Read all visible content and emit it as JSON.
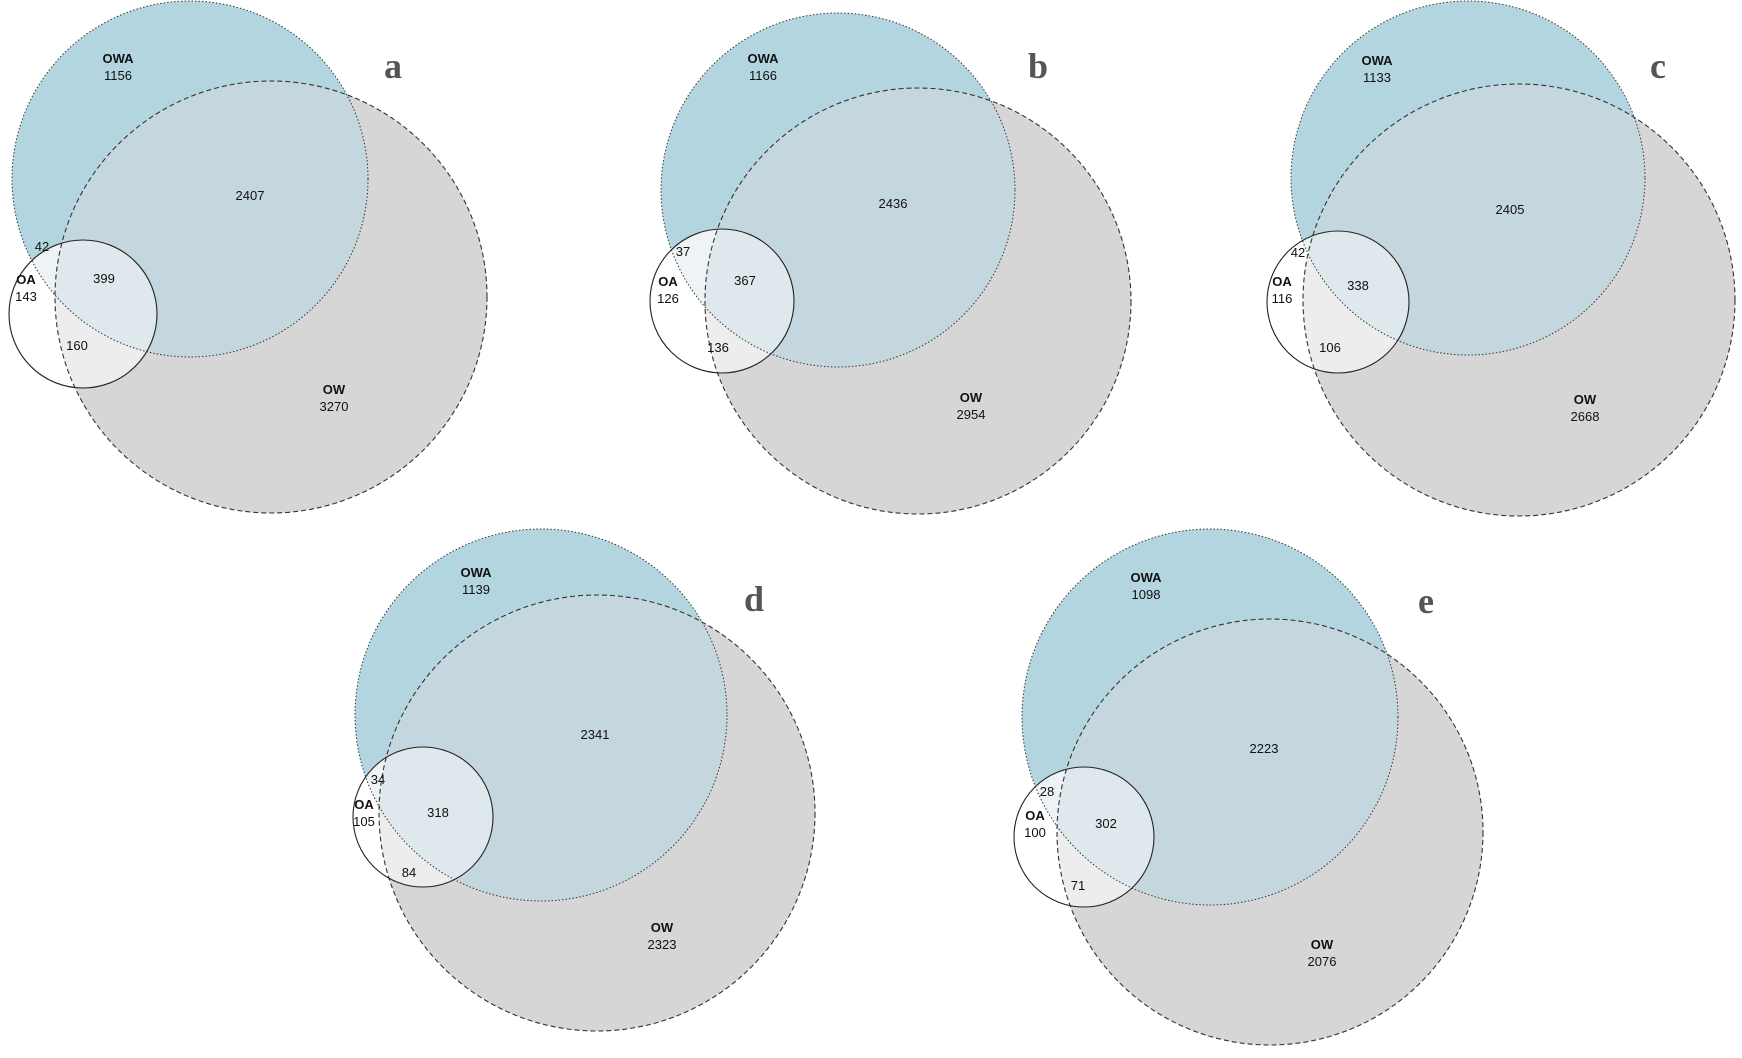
{
  "colors": {
    "owa_fill": "#b3d5e0",
    "ow_fill": "#d6d6d6",
    "overlap_fill": "#c5d7de",
    "oa_fill": "#ffffff",
    "panel_letter": "#555555"
  },
  "panels": [
    {
      "letter": "a",
      "sets": {
        "owa": "OWA",
        "ow": "OW",
        "oa": "OA"
      },
      "counts": {
        "owa_only": "1156",
        "owa_ow": "2407",
        "ow_only": "3270",
        "oa_only": "143",
        "oa_owa": "42",
        "oa_all": "399",
        "oa_ow": "160"
      }
    },
    {
      "letter": "b",
      "sets": {
        "owa": "OWA",
        "ow": "OW",
        "oa": "OA"
      },
      "counts": {
        "owa_only": "1166",
        "owa_ow": "2436",
        "ow_only": "2954",
        "oa_only": "126",
        "oa_owa": "37",
        "oa_all": "367",
        "oa_ow": "136"
      }
    },
    {
      "letter": "c",
      "sets": {
        "owa": "OWA",
        "ow": "OW",
        "oa": "OA"
      },
      "counts": {
        "owa_only": "1133",
        "owa_ow": "2405",
        "ow_only": "2668",
        "oa_only": "116",
        "oa_owa": "42",
        "oa_all": "338",
        "oa_ow": "106"
      }
    },
    {
      "letter": "d",
      "sets": {
        "owa": "OWA",
        "ow": "OW",
        "oa": "OA"
      },
      "counts": {
        "owa_only": "1139",
        "owa_ow": "2341",
        "ow_only": "2323",
        "oa_only": "105",
        "oa_owa": "34",
        "oa_all": "318",
        "oa_ow": "84"
      }
    },
    {
      "letter": "e",
      "sets": {
        "owa": "OWA",
        "ow": "OW",
        "oa": "OA"
      },
      "counts": {
        "owa_only": "1098",
        "owa_ow": "2223",
        "ow_only": "2076",
        "oa_only": "100",
        "oa_owa": "28",
        "oa_all": "302",
        "oa_ow": "71"
      }
    }
  ]
}
